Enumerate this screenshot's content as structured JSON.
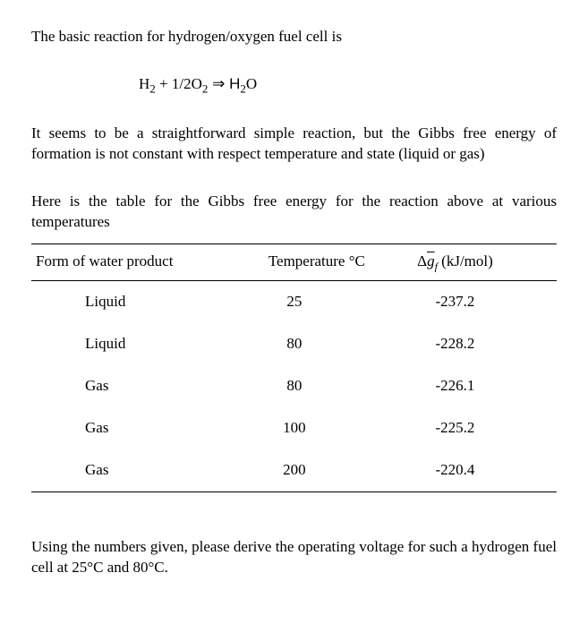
{
  "intro": "The basic reaction for hydrogen/oxygen fuel cell is",
  "equation": {
    "h2": "H",
    "h2sub": "2",
    "plus": " + 1/2O",
    "o2sub": "2",
    "arrow": " ⇒ H",
    "h2o_h": "2",
    "h2o_o": "O"
  },
  "paragraph1": "It seems to be a straightforward simple reaction, but the Gibbs free energy of formation is not constant with respect temperature and state (liquid or gas)",
  "table_intro": "Here is the table for the Gibbs free energy for the reaction above at various temperatures",
  "table": {
    "headers": {
      "col1": "Form of water product",
      "col2": "Temperature °C",
      "col3_prefix": "Δ",
      "col3_g": "g",
      "col3_sub": "f",
      "col3_unit": "  (kJ/mol)"
    },
    "rows": [
      {
        "form": "Liquid",
        "temp": "25",
        "dg": "-237.2"
      },
      {
        "form": "Liquid",
        "temp": "80",
        "dg": "-228.2"
      },
      {
        "form": "Gas",
        "temp": "80",
        "dg": "-226.1"
      },
      {
        "form": "Gas",
        "temp": "100",
        "dg": "-225.2"
      },
      {
        "form": "Gas",
        "temp": "200",
        "dg": "-220.4"
      }
    ]
  },
  "final": "Using the numbers given, please derive the operating voltage for such a hydrogen fuel cell at 25°C and 80°C."
}
